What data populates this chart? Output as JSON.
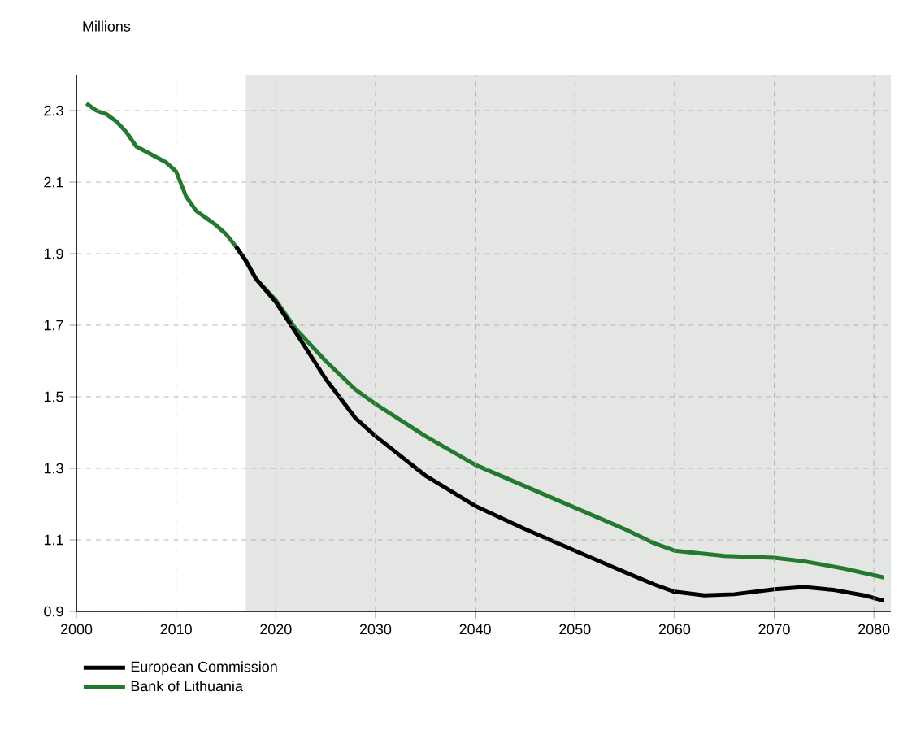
{
  "chart_data": {
    "type": "line",
    "ylabel": "Millions",
    "xlim": [
      2000,
      2081.7
    ],
    "xticks": [
      2000,
      2010,
      2020,
      2030,
      2040,
      2050,
      2060,
      2070,
      2080
    ],
    "ylim": [
      0.9,
      2.4
    ],
    "yticks": [
      0.9,
      1.1,
      1.3,
      1.5,
      1.7,
      1.9,
      2.1,
      2.3
    ],
    "grid": true,
    "legend": "bottom left",
    "line_style": "solid",
    "marker": "none",
    "bands": [
      {
        "axis": "x",
        "from": 2017,
        "to": 2081.7,
        "color": "#e3e6e3"
      }
    ],
    "series": [
      {
        "name": "European Commission",
        "color": "#000000",
        "x": [
          2016,
          2017,
          2018,
          2020,
          2022,
          2025,
          2028,
          2030,
          2035,
          2040,
          2045,
          2050,
          2055,
          2058,
          2060,
          2063,
          2066,
          2070,
          2073,
          2076,
          2079,
          2081
        ],
        "values": [
          1.92,
          1.88,
          1.83,
          1.765,
          1.68,
          1.55,
          1.44,
          1.39,
          1.28,
          1.195,
          1.13,
          1.07,
          1.01,
          0.975,
          0.955,
          0.945,
          0.948,
          0.962,
          0.968,
          0.96,
          0.945,
          0.93
        ]
      },
      {
        "name": "Bank of Lithuania",
        "color": "#25792f",
        "x": [
          2001,
          2002,
          2003,
          2004,
          2005,
          2006,
          2008,
          2009,
          2010,
          2011,
          2012,
          2014,
          2015,
          2016,
          2017,
          2018,
          2020,
          2022,
          2025,
          2028,
          2030,
          2035,
          2040,
          2045,
          2050,
          2055,
          2058,
          2060,
          2065,
          2070,
          2073,
          2077,
          2081
        ],
        "values": [
          2.32,
          2.3,
          2.29,
          2.27,
          2.24,
          2.2,
          2.17,
          2.155,
          2.13,
          2.06,
          2.02,
          1.98,
          1.955,
          1.92,
          1.88,
          1.83,
          1.77,
          1.69,
          1.6,
          1.52,
          1.48,
          1.39,
          1.31,
          1.25,
          1.19,
          1.13,
          1.09,
          1.07,
          1.055,
          1.05,
          1.04,
          1.02,
          0.995
        ]
      }
    ]
  }
}
